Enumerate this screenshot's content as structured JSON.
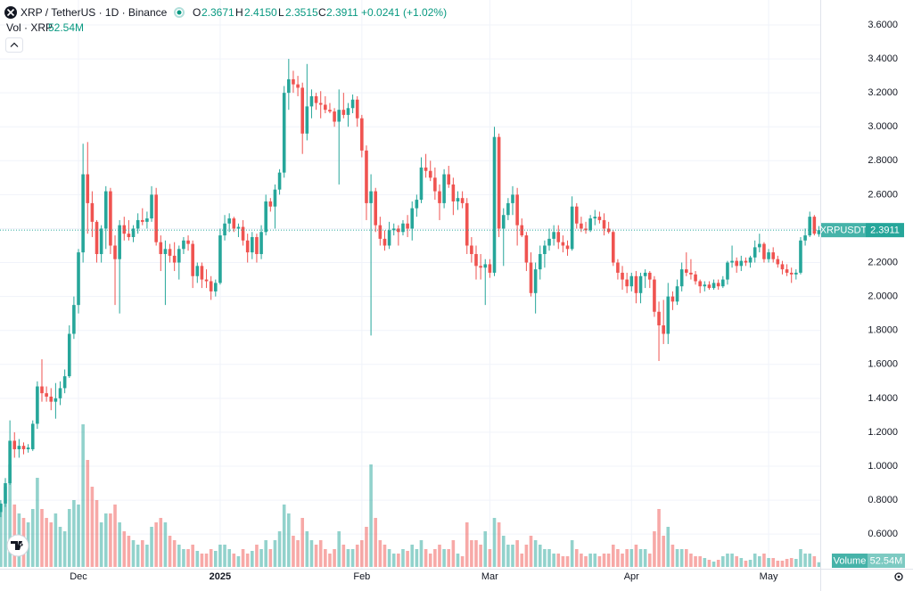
{
  "header": {
    "symbol": "XRP / TetherUS · 1D · Binance",
    "open_label": "O",
    "open": "2.3671",
    "high_label": "H",
    "high": "2.4150",
    "low_label": "L",
    "low": "2.3515",
    "close_label": "C",
    "close": "2.3911",
    "change": "+0.0241 (+1.02%)",
    "volume_label": "Vol · XRP",
    "volume": "52.54M"
  },
  "chart_data": {
    "type": "candlestick",
    "up_color": "#26a69a",
    "down_color": "#ef5350",
    "grid": true,
    "price_tag": {
      "name": "XRPUSDT",
      "label": "2.3911"
    },
    "volume_tag": {
      "name": "Volume",
      "label": "52.54M"
    },
    "xlim": [
      -0.17,
      179.3
    ],
    "xticks": [
      {
        "value": 17,
        "label": "Dec"
      },
      {
        "value": 48,
        "label": "2025"
      },
      {
        "value": 79,
        "label": "Feb"
      },
      {
        "value": 107,
        "label": "Mar"
      },
      {
        "value": 138,
        "label": "Apr"
      },
      {
        "value": 168,
        "label": "May"
      }
    ],
    "ylim": [
      0.396,
      3.747
    ],
    "yticks": [
      {
        "value": 0.6,
        "label": "0.6000"
      },
      {
        "value": 0.8,
        "label": "0.8000"
      },
      {
        "value": 1.0,
        "label": "1.0000"
      },
      {
        "value": 1.2,
        "label": "1.2000"
      },
      {
        "value": 1.4,
        "label": "1.4000"
      },
      {
        "value": 1.6,
        "label": "1.6000"
      },
      {
        "value": 1.8,
        "label": "1.8000"
      },
      {
        "value": 2.0,
        "label": "2.0000"
      },
      {
        "value": 2.2,
        "label": "2.2000"
      },
      {
        "value": 2.4,
        "label": "2.4000"
      },
      {
        "value": 2.6,
        "label": "2.6000"
      },
      {
        "value": 2.8,
        "label": "2.8000"
      },
      {
        "value": 3.0,
        "label": "3.0000"
      },
      {
        "value": 3.2,
        "label": "3.2000"
      },
      {
        "value": 3.4,
        "label": "3.4000"
      },
      {
        "value": 3.6,
        "label": "3.6000"
      }
    ],
    "ohlc": [
      [
        0.73,
        0.8,
        0.7,
        0.78
      ],
      [
        0.78,
        0.93,
        0.76,
        0.9
      ],
      [
        0.9,
        1.27,
        0.89,
        1.15
      ],
      [
        1.15,
        1.2,
        1.05,
        1.1
      ],
      [
        1.1,
        1.16,
        1.05,
        1.12
      ],
      [
        1.12,
        1.14,
        1.07,
        1.1
      ],
      [
        1.1,
        1.13,
        1.08,
        1.11
      ],
      [
        1.1,
        1.27,
        1.09,
        1.25
      ],
      [
        1.25,
        1.5,
        1.22,
        1.47
      ],
      [
        1.47,
        1.63,
        1.38,
        1.43
      ],
      [
        1.43,
        1.47,
        1.38,
        1.41
      ],
      [
        1.41,
        1.46,
        1.33,
        1.38
      ],
      [
        1.38,
        1.49,
        1.28,
        1.4
      ],
      [
        1.4,
        1.5,
        1.36,
        1.46
      ],
      [
        1.46,
        1.57,
        1.43,
        1.53
      ],
      [
        1.53,
        1.83,
        1.52,
        1.78
      ],
      [
        1.78,
        2.0,
        1.75,
        1.95
      ],
      [
        1.95,
        2.28,
        1.9,
        2.26
      ],
      [
        2.26,
        2.9,
        2.2,
        2.72
      ],
      [
        2.72,
        2.91,
        2.37,
        2.55
      ],
      [
        2.55,
        2.62,
        2.35,
        2.44
      ],
      [
        2.44,
        2.45,
        2.2,
        2.25
      ],
      [
        2.25,
        2.42,
        2.2,
        2.4
      ],
      [
        2.4,
        2.65,
        2.28,
        2.62
      ],
      [
        2.62,
        2.64,
        2.25,
        2.3
      ],
      [
        2.3,
        2.36,
        1.95,
        2.22
      ],
      [
        2.22,
        2.45,
        1.9,
        2.42
      ],
      [
        2.42,
        2.47,
        2.33,
        2.37
      ],
      [
        2.37,
        2.45,
        2.33,
        2.35
      ],
      [
        2.35,
        2.42,
        2.32,
        2.4
      ],
      [
        2.4,
        2.49,
        2.37,
        2.45
      ],
      [
        2.45,
        2.52,
        2.42,
        2.44
      ],
      [
        2.44,
        2.5,
        2.4,
        2.46
      ],
      [
        2.46,
        2.65,
        2.44,
        2.6
      ],
      [
        2.6,
        2.64,
        2.3,
        2.32
      ],
      [
        2.32,
        2.36,
        2.15,
        2.25
      ],
      [
        2.25,
        2.33,
        1.95,
        2.28
      ],
      [
        2.28,
        2.31,
        2.2,
        2.24
      ],
      [
        2.24,
        2.32,
        2.15,
        2.2
      ],
      [
        2.2,
        2.3,
        2.1,
        2.28
      ],
      [
        2.28,
        2.35,
        2.25,
        2.33
      ],
      [
        2.33,
        2.36,
        2.27,
        2.31
      ],
      [
        2.31,
        2.33,
        2.05,
        2.12
      ],
      [
        2.12,
        2.2,
        2.08,
        2.18
      ],
      [
        2.18,
        2.2,
        2.05,
        2.1
      ],
      [
        2.1,
        2.16,
        2.05,
        2.09
      ],
      [
        2.09,
        2.12,
        1.98,
        2.03
      ],
      [
        2.03,
        2.1,
        2.0,
        2.08
      ],
      [
        2.08,
        2.4,
        2.07,
        2.36
      ],
      [
        2.36,
        2.48,
        2.33,
        2.43
      ],
      [
        2.43,
        2.49,
        2.38,
        2.46
      ],
      [
        2.46,
        2.47,
        2.38,
        2.4
      ],
      [
        2.4,
        2.43,
        2.35,
        2.41
      ],
      [
        2.41,
        2.45,
        2.3,
        2.33
      ],
      [
        2.33,
        2.37,
        2.2,
        2.26
      ],
      [
        2.26,
        2.38,
        2.22,
        2.35
      ],
      [
        2.35,
        2.37,
        2.2,
        2.25
      ],
      [
        2.25,
        2.42,
        2.22,
        2.38
      ],
      [
        2.38,
        2.6,
        2.36,
        2.56
      ],
      [
        2.56,
        2.58,
        2.5,
        2.53
      ],
      [
        2.53,
        2.66,
        2.4,
        2.63
      ],
      [
        2.63,
        2.75,
        2.6,
        2.73
      ],
      [
        2.73,
        3.24,
        2.7,
        3.2
      ],
      [
        3.2,
        3.4,
        3.1,
        3.28
      ],
      [
        3.28,
        3.33,
        3.2,
        3.25
      ],
      [
        3.25,
        3.3,
        3.18,
        3.23
      ],
      [
        3.23,
        3.26,
        2.84,
        2.96
      ],
      [
        2.96,
        3.37,
        2.92,
        3.12
      ],
      [
        3.12,
        3.22,
        3.05,
        3.18
      ],
      [
        3.18,
        3.2,
        3.1,
        3.14
      ],
      [
        3.14,
        3.21,
        3.05,
        3.13
      ],
      [
        3.13,
        3.18,
        3.08,
        3.1
      ],
      [
        3.1,
        3.14,
        3.08,
        3.09
      ],
      [
        3.09,
        3.11,
        3.0,
        3.03
      ],
      [
        3.03,
        3.22,
        2.66,
        3.1
      ],
      [
        3.1,
        3.2,
        3.05,
        3.07
      ],
      [
        3.07,
        3.14,
        3.0,
        3.11
      ],
      [
        3.11,
        3.19,
        3.08,
        3.16
      ],
      [
        3.16,
        3.18,
        3.0,
        3.05
      ],
      [
        3.05,
        3.07,
        2.82,
        2.86
      ],
      [
        2.86,
        2.89,
        2.45,
        2.55
      ],
      [
        2.55,
        2.72,
        1.77,
        2.62
      ],
      [
        2.62,
        2.64,
        2.38,
        2.42
      ],
      [
        2.42,
        2.47,
        2.3,
        2.34
      ],
      [
        2.34,
        2.39,
        2.27,
        2.3
      ],
      [
        2.3,
        2.44,
        2.28,
        2.39
      ],
      [
        2.39,
        2.43,
        2.36,
        2.4
      ],
      [
        2.4,
        2.42,
        2.3,
        2.38
      ],
      [
        2.38,
        2.45,
        2.36,
        2.43
      ],
      [
        2.43,
        2.48,
        2.35,
        2.4
      ],
      [
        2.4,
        2.56,
        2.33,
        2.52
      ],
      [
        2.52,
        2.6,
        2.47,
        2.57
      ],
      [
        2.57,
        2.82,
        2.55,
        2.76
      ],
      [
        2.76,
        2.84,
        2.7,
        2.74
      ],
      [
        2.74,
        2.8,
        2.68,
        2.7
      ],
      [
        2.7,
        2.76,
        2.57,
        2.62
      ],
      [
        2.62,
        2.66,
        2.45,
        2.55
      ],
      [
        2.55,
        2.75,
        2.52,
        2.72
      ],
      [
        2.72,
        2.77,
        2.64,
        2.66
      ],
      [
        2.66,
        2.7,
        2.48,
        2.56
      ],
      [
        2.56,
        2.62,
        2.51,
        2.58
      ],
      [
        2.58,
        2.62,
        2.52,
        2.55
      ],
      [
        2.55,
        2.58,
        2.25,
        2.3
      ],
      [
        2.3,
        2.35,
        2.2,
        2.25
      ],
      [
        2.25,
        2.3,
        2.1,
        2.18
      ],
      [
        2.18,
        2.25,
        2.1,
        2.17
      ],
      [
        2.17,
        2.22,
        1.95,
        2.19
      ],
      [
        2.19,
        2.22,
        2.11,
        2.14
      ],
      [
        2.14,
        3.0,
        2.12,
        2.94
      ],
      [
        2.94,
        2.96,
        2.35,
        2.4
      ],
      [
        2.4,
        2.52,
        2.18,
        2.48
      ],
      [
        2.48,
        2.58,
        2.45,
        2.55
      ],
      [
        2.55,
        2.65,
        2.48,
        2.6
      ],
      [
        2.6,
        2.64,
        2.3,
        2.42
      ],
      [
        2.42,
        2.46,
        2.35,
        2.36
      ],
      [
        2.36,
        2.38,
        2.15,
        2.2
      ],
      [
        2.2,
        2.26,
        2.0,
        2.02
      ],
      [
        2.02,
        2.2,
        1.9,
        2.16
      ],
      [
        2.16,
        2.3,
        2.1,
        2.25
      ],
      [
        2.25,
        2.33,
        2.17,
        2.3
      ],
      [
        2.3,
        2.4,
        2.27,
        2.34
      ],
      [
        2.34,
        2.42,
        2.3,
        2.38
      ],
      [
        2.38,
        2.42,
        2.28,
        2.32
      ],
      [
        2.32,
        2.36,
        2.26,
        2.3
      ],
      [
        2.3,
        2.33,
        2.24,
        2.28
      ],
      [
        2.28,
        2.59,
        2.27,
        2.53
      ],
      [
        2.53,
        2.55,
        2.4,
        2.43
      ],
      [
        2.43,
        2.47,
        2.38,
        2.4
      ],
      [
        2.4,
        2.44,
        2.37,
        2.39
      ],
      [
        2.39,
        2.48,
        2.38,
        2.46
      ],
      [
        2.46,
        2.51,
        2.42,
        2.47
      ],
      [
        2.47,
        2.5,
        2.43,
        2.45
      ],
      [
        2.45,
        2.49,
        2.36,
        2.4
      ],
      [
        2.4,
        2.44,
        2.37,
        2.38
      ],
      [
        2.38,
        2.39,
        2.18,
        2.2
      ],
      [
        2.2,
        2.22,
        2.1,
        2.14
      ],
      [
        2.14,
        2.18,
        2.04,
        2.1
      ],
      [
        2.1,
        2.14,
        2.02,
        2.06
      ],
      [
        2.06,
        2.14,
        2.03,
        2.12
      ],
      [
        2.12,
        2.15,
        1.96,
        2.02
      ],
      [
        2.02,
        2.14,
        1.96,
        2.12
      ],
      [
        2.12,
        2.16,
        2.05,
        2.14
      ],
      [
        2.14,
        2.15,
        2.05,
        2.1
      ],
      [
        2.1,
        2.12,
        1.88,
        1.91
      ],
      [
        1.91,
        1.97,
        1.62,
        1.83
      ],
      [
        1.83,
        1.98,
        1.72,
        1.78
      ],
      [
        1.78,
        2.08,
        1.72,
        2.0
      ],
      [
        2.0,
        2.03,
        1.92,
        1.97
      ],
      [
        1.97,
        2.1,
        1.95,
        2.06
      ],
      [
        2.06,
        2.2,
        2.03,
        2.16
      ],
      [
        2.16,
        2.26,
        2.12,
        2.14
      ],
      [
        2.14,
        2.22,
        2.1,
        2.13
      ],
      [
        2.13,
        2.15,
        2.07,
        2.09
      ],
      [
        2.09,
        2.1,
        2.02,
        2.06
      ],
      [
        2.06,
        2.09,
        2.03,
        2.07
      ],
      [
        2.07,
        2.09,
        2.04,
        2.05
      ],
      [
        2.05,
        2.1,
        2.04,
        2.08
      ],
      [
        2.08,
        2.1,
        2.04,
        2.06
      ],
      [
        2.06,
        2.12,
        2.05,
        2.1
      ],
      [
        2.1,
        2.21,
        2.07,
        2.2
      ],
      [
        2.2,
        2.3,
        2.17,
        2.21
      ],
      [
        2.21,
        2.23,
        2.14,
        2.18
      ],
      [
        2.18,
        2.24,
        2.15,
        2.21
      ],
      [
        2.21,
        2.23,
        2.18,
        2.2
      ],
      [
        2.2,
        2.24,
        2.17,
        2.23
      ],
      [
        2.23,
        2.33,
        2.2,
        2.29
      ],
      [
        2.29,
        2.37,
        2.26,
        2.31
      ],
      [
        2.31,
        2.32,
        2.2,
        2.22
      ],
      [
        2.22,
        2.28,
        2.2,
        2.26
      ],
      [
        2.26,
        2.29,
        2.2,
        2.22
      ],
      [
        2.22,
        2.24,
        2.17,
        2.19
      ],
      [
        2.19,
        2.21,
        2.13,
        2.16
      ],
      [
        2.16,
        2.19,
        2.12,
        2.14
      ],
      [
        2.14,
        2.17,
        2.08,
        2.13
      ],
      [
        2.13,
        2.16,
        2.1,
        2.14
      ],
      [
        2.14,
        2.35,
        2.13,
        2.33
      ],
      [
        2.33,
        2.4,
        2.3,
        2.36
      ],
      [
        2.36,
        2.5,
        2.35,
        2.47
      ],
      [
        2.47,
        2.48,
        2.36,
        2.37
      ],
      [
        2.3671,
        2.415,
        2.3515,
        2.3911
      ]
    ],
    "volume": [
      700,
      900,
      1150,
      700,
      600,
      550,
      500,
      650,
      1000,
      650,
      550,
      500,
      600,
      450,
      400,
      650,
      750,
      700,
      1600,
      1200,
      900,
      750,
      500,
      600,
      600,
      700,
      500,
      400,
      350,
      300,
      250,
      300,
      250,
      450,
      500,
      550,
      500,
      350,
      300,
      250,
      200,
      200,
      250,
      180,
      150,
      150,
      200,
      180,
      250,
      250,
      200,
      150,
      120,
      200,
      150,
      180,
      250,
      200,
      300,
      200,
      300,
      400,
      700,
      600,
      350,
      300,
      550,
      400,
      300,
      250,
      300,
      200,
      150,
      200,
      400,
      250,
      200,
      200,
      250,
      300,
      450,
      1150,
      550,
      300,
      250,
      200,
      150,
      150,
      200,
      180,
      250,
      200,
      300,
      200,
      150,
      200,
      250,
      200,
      200,
      300,
      150,
      120,
      500,
      300,
      300,
      250,
      400,
      200,
      550,
      500,
      350,
      250,
      250,
      300,
      150,
      250,
      350,
      300,
      250,
      200,
      200,
      150,
      150,
      120,
      120,
      300,
      200,
      150,
      120,
      150,
      150,
      120,
      150,
      150,
      250,
      200,
      150,
      200,
      200,
      250,
      200,
      200,
      150,
      400,
      650,
      350,
      450,
      250,
      200,
      200,
      200,
      150,
      120,
      120,
      100,
      80,
      60,
      80,
      120,
      150,
      150,
      120,
      100,
      70,
      80,
      150,
      120,
      150,
      100,
      100,
      70,
      70,
      90,
      100,
      90,
      200,
      150,
      150,
      120,
      52.54
    ]
  }
}
